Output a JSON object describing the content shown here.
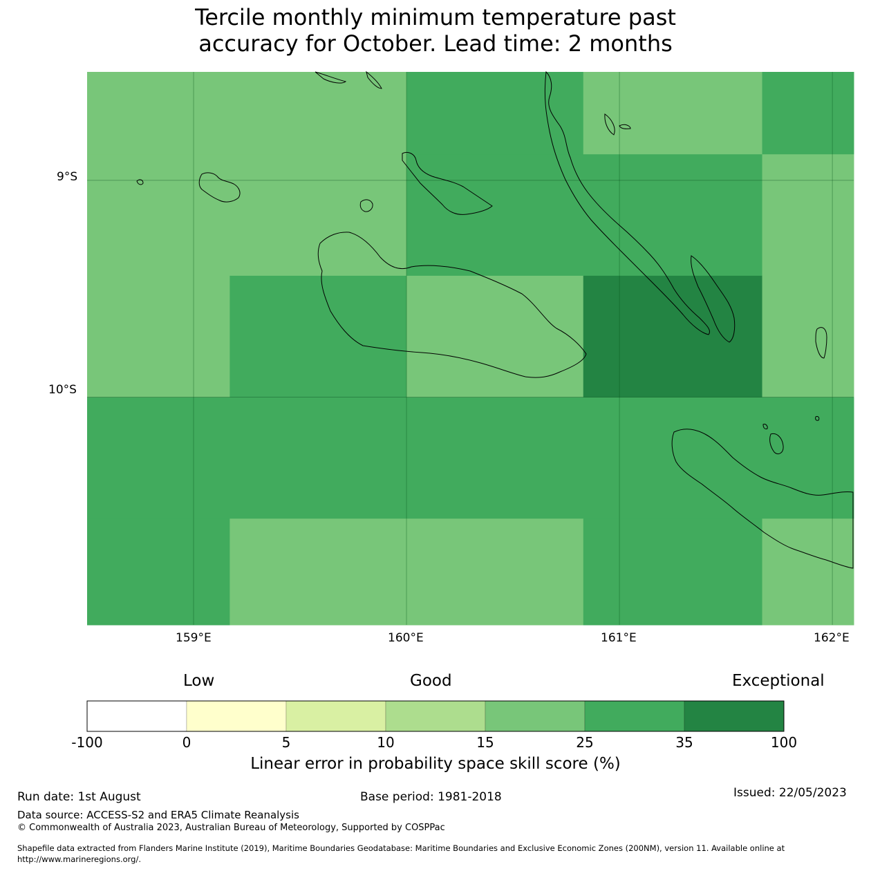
{
  "title": {
    "line1": "Tercile monthly minimum temperature past",
    "line2": "accuracy for October. Lead time: 2 months"
  },
  "map": {
    "lat_labels": [
      "9°S",
      "10°S"
    ],
    "lon_labels": [
      "159°E",
      "160°E",
      "161°E",
      "162°E"
    ],
    "extent": {
      "lon": [
        158.5,
        162.1
      ],
      "lat": [
        -11.05,
        -8.5
      ]
    },
    "cells": [
      {
        "lon": [
          158.5,
          160.0
        ],
        "lat": [
          -8.88,
          -8.5
        ],
        "cls": 25
      },
      {
        "lon": [
          160.0,
          160.83
        ],
        "lat": [
          -8.88,
          -8.5
        ],
        "cls": 35
      },
      {
        "lon": [
          160.83,
          161.67
        ],
        "lat": [
          -8.88,
          -8.5
        ],
        "cls": 25
      },
      {
        "lon": [
          161.67,
          162.1
        ],
        "lat": [
          -8.88,
          -8.5
        ],
        "cls": 35
      },
      {
        "lon": [
          158.5,
          160.0
        ],
        "lat": [
          -9.44,
          -8.88
        ],
        "cls": 25
      },
      {
        "lon": [
          160.0,
          161.67
        ],
        "lat": [
          -9.44,
          -8.88
        ],
        "cls": 35
      },
      {
        "lon": [
          161.67,
          162.1
        ],
        "lat": [
          -9.44,
          -8.88
        ],
        "cls": 25
      },
      {
        "lon": [
          158.5,
          159.17
        ],
        "lat": [
          -10.0,
          -9.44
        ],
        "cls": 25
      },
      {
        "lon": [
          159.17,
          160.0
        ],
        "lat": [
          -10.0,
          -9.44
        ],
        "cls": 35
      },
      {
        "lon": [
          160.0,
          160.83
        ],
        "lat": [
          -10.0,
          -9.44
        ],
        "cls": 25
      },
      {
        "lon": [
          160.83,
          161.67
        ],
        "lat": [
          -10.0,
          -9.44
        ],
        "cls": 100
      },
      {
        "lon": [
          161.67,
          162.1
        ],
        "lat": [
          -10.0,
          -9.44
        ],
        "cls": 25
      },
      {
        "lon": [
          158.5,
          162.1
        ],
        "lat": [
          -10.56,
          -10.0
        ],
        "cls": 35
      },
      {
        "lon": [
          158.5,
          159.17
        ],
        "lat": [
          -11.05,
          -10.56
        ],
        "cls": 35
      },
      {
        "lon": [
          159.17,
          160.83
        ],
        "lat": [
          -11.05,
          -10.56
        ],
        "cls": 25
      },
      {
        "lon": [
          160.83,
          161.67
        ],
        "lat": [
          -11.05,
          -10.56
        ],
        "cls": 35
      },
      {
        "lon": [
          161.67,
          162.1
        ],
        "lat": [
          -11.05,
          -10.56
        ],
        "cls": 25
      }
    ]
  },
  "legend": {
    "low": "Low",
    "good": "Good",
    "exceptional": "Exceptional",
    "ticks": [
      "-100",
      "0",
      "5",
      "10",
      "15",
      "25",
      "35",
      "100"
    ],
    "colors": [
      "#ffffff",
      "#ffffcc",
      "#d9f0a3",
      "#addd8e",
      "#78c679",
      "#41ab5d",
      "#238443"
    ],
    "title": "Linear error in probability space skill score (%)"
  },
  "footer": {
    "run_date": "Run date: 1st August",
    "base_period": "Base period: 1981-2018",
    "issued": "Issued: 22/05/2023",
    "data_source": "Data source: ACCESS-S2 and ERA5 Climate Reanalysis",
    "copyright": "© Commonwealth of Australia 2023, Australian Bureau of Meteorology, Supported by COSPPac",
    "shapefile_line1": "Shapefile data extracted from Flanders Marine Institute (2019), Maritime Boundaries Geodatabase: Maritime Boundaries and Exclusive Economic Zones (200NM), version 11. Available online at",
    "shapefile_line2": "http://www.marineregions.org/."
  }
}
